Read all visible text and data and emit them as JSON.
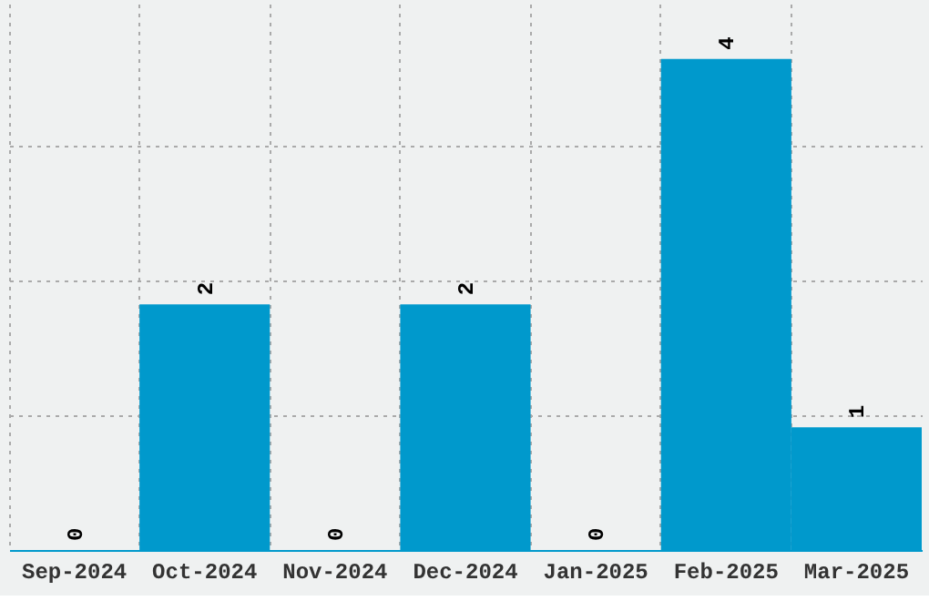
{
  "chart_data": {
    "type": "bar",
    "categories": [
      "Sep-2024",
      "Oct-2024",
      "Nov-2024",
      "Dec-2024",
      "Jan-2025",
      "Feb-2025",
      "Mar-2025"
    ],
    "values": [
      0,
      2,
      0,
      2,
      0,
      4,
      1
    ],
    "color": "#0099cc",
    "data_labels": true,
    "ylim": [
      0,
      4.45
    ],
    "yticks": [
      {
        "value": 1.1,
        "label": null
      },
      {
        "value": 2.2,
        "label": null
      },
      {
        "value": 3.3,
        "label": null
      }
    ],
    "grid": true,
    "tick_labels": "x"
  }
}
